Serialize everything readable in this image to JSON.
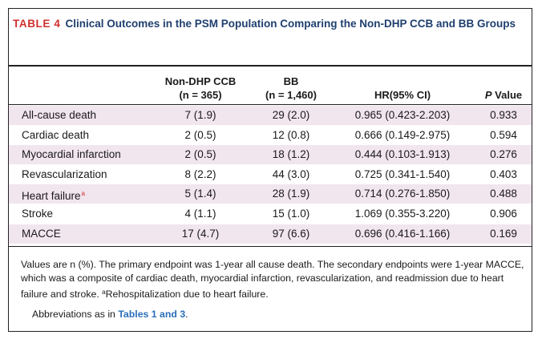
{
  "table": {
    "label": "TABLE 4",
    "title": "Clinical Outcomes in the PSM Population Comparing the Non-DHP CCB and BB Groups",
    "headers": {
      "col1_line1": "Non-DHP CCB",
      "col1_line2": "(n = 365)",
      "col2_line1": "BB",
      "col2_line2": "(n = 1,460)",
      "col3": "HR(95% CI)",
      "col4_italic": "P",
      "col4_rest": " Value"
    },
    "rows": [
      {
        "outcome": "All-cause death",
        "ccb": "7 (1.9)",
        "bb": "29 (2.0)",
        "hr": "0.965 (0.423-2.203)",
        "p": "0.933",
        "footnote": ""
      },
      {
        "outcome": "Cardiac death",
        "ccb": "2 (0.5)",
        "bb": "12 (0.8)",
        "hr": "0.666 (0.149-2.975)",
        "p": "0.594",
        "footnote": ""
      },
      {
        "outcome": "Myocardial infarction",
        "ccb": "2 (0.5)",
        "bb": "18 (1.2)",
        "hr": "0.444 (0.103-1.913)",
        "p": "0.276",
        "footnote": ""
      },
      {
        "outcome": "Revascularization",
        "ccb": "8 (2.2)",
        "bb": "44 (3.0)",
        "hr": "0.725 (0.341-1.540)",
        "p": "0.403",
        "footnote": ""
      },
      {
        "outcome": "Heart failure",
        "ccb": "5 (1.4)",
        "bb": "28 (1.9)",
        "hr": "0.714 (0.276-1.850)",
        "p": "0.488",
        "footnote": "a"
      },
      {
        "outcome": "Stroke",
        "ccb": "4 (1.1)",
        "bb": "15 (1.0)",
        "hr": "1.069 (0.355-3.220)",
        "p": "0.906",
        "footnote": ""
      },
      {
        "outcome": "MACCE",
        "ccb": "17 (4.7)",
        "bb": "97 (6.6)",
        "hr": "0.696 (0.416-1.166)",
        "p": "0.169",
        "footnote": ""
      }
    ]
  },
  "notes": {
    "text": "Values are n (%). The primary endpoint was 1-year all cause death. The secondary endpoints were 1-year MACCE, which was a composite of cardiac death, myocardial infarction, revascularization, and readmission due to heart failure and stroke. ",
    "footnote_mark": "a",
    "footnote_text": "Rehospitalization due to heart failure.",
    "abbr_prefix": "Abbreviations as in ",
    "abbr_link": "Tables 1 and 3",
    "abbr_suffix": "."
  },
  "colors": {
    "title": "#1f3f6e",
    "label": "#d0302e",
    "row_shade": "#f1e5ee",
    "link": "#2a6fb8"
  }
}
